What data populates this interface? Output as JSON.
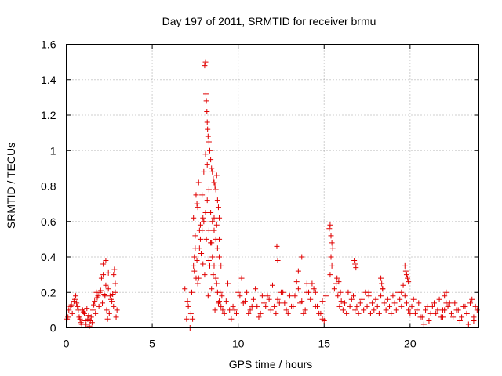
{
  "chart_data": {
    "type": "scatter",
    "title": "Day 197 of 2011, SRMTID for receiver brmu",
    "xlabel": "GPS time / hours",
    "ylabel": "SRMTID / TECUs",
    "xlim": [
      0,
      24
    ],
    "ylim": [
      0,
      1.6
    ],
    "xticks": [
      0,
      5,
      10,
      15,
      20
    ],
    "xtick_labels": [
      "0",
      "5",
      "10",
      "15",
      "20"
    ],
    "yticks": [
      0,
      0.2,
      0.4,
      0.6,
      0.8,
      1,
      1.2,
      1.4,
      1.6
    ],
    "ytick_labels": [
      "0",
      "0.2",
      "0.4",
      "0.6",
      "0.8",
      "1",
      "1.2",
      "1.4",
      "1.6"
    ],
    "grid": true,
    "marker": "plus",
    "color": "#e00000",
    "series": [
      {
        "name": "SRMTID",
        "x": [
          0.05,
          0.15,
          0.25,
          0.35,
          0.45,
          0.55,
          0.65,
          0.75,
          0.85,
          0.95,
          1.05,
          1.15,
          1.25,
          1.35,
          1.45,
          1.55,
          1.65,
          1.75,
          1.85,
          1.95,
          2.05,
          2.15,
          2.25,
          2.35,
          2.45,
          2.55,
          2.65,
          2.75,
          2.85,
          2.95,
          0.1,
          0.3,
          0.5,
          0.7,
          0.9,
          1.1,
          1.3,
          1.5,
          1.7,
          1.9,
          2.1,
          2.3,
          2.5,
          2.7,
          2.9,
          1.0,
          1.2,
          1.4,
          1.8,
          2.0,
          2.2,
          2.4,
          2.6,
          2.8,
          0.6,
          0.8,
          1.6,
          2.15,
          2.3,
          2.45,
          2.75,
          2.85,
          6.9,
          7.0,
          7.1,
          7.2,
          7.3,
          7.4,
          7.5,
          7.6,
          7.7,
          7.8,
          7.9,
          8.0,
          8.1,
          8.2,
          8.3,
          8.4,
          8.5,
          8.6,
          8.7,
          8.8,
          8.9,
          9.0,
          9.1,
          9.2,
          7.05,
          7.25,
          7.45,
          7.65,
          7.85,
          8.05,
          8.25,
          8.45,
          8.65,
          8.85,
          9.05,
          7.35,
          7.55,
          7.75,
          7.95,
          8.15,
          8.35,
          8.55,
          8.75,
          8.95,
          8.05,
          8.1,
          8.12,
          8.15,
          8.18,
          8.2,
          8.22,
          8.25,
          8.3,
          8.35,
          8.4,
          8.45,
          8.5,
          8.55,
          8.6,
          8.65,
          8.7,
          8.75,
          8.8,
          8.85,
          8.9,
          7.5,
          7.6,
          7.7,
          7.8,
          7.9,
          8.0,
          8.1,
          8.2,
          8.3,
          8.4,
          8.5,
          8.6,
          8.7,
          8.8,
          8.9,
          9.0,
          7.4,
          7.45,
          7.55,
          7.65,
          7.75,
          7.85,
          7.95,
          8.3,
          8.45,
          8.6,
          8.75,
          8.9,
          9.3,
          9.5,
          9.7,
          9.9,
          10.1,
          10.3,
          10.5,
          10.7,
          10.9,
          11.1,
          11.3,
          11.5,
          11.7,
          11.9,
          12.1,
          12.3,
          12.5,
          12.7,
          12.9,
          13.1,
          13.3,
          13.5,
          13.7,
          13.9,
          14.1,
          14.3,
          14.5,
          14.7,
          14.9,
          15.1,
          9.4,
          9.6,
          9.8,
          10.0,
          10.2,
          10.4,
          10.6,
          10.8,
          11.0,
          11.2,
          11.4,
          11.6,
          11.8,
          12.0,
          12.2,
          12.4,
          12.6,
          12.8,
          13.0,
          13.2,
          13.4,
          13.6,
          13.8,
          14.0,
          14.2,
          14.4,
          14.6,
          14.8,
          15.0,
          12.25,
          12.3,
          13.5,
          13.7,
          14.0,
          14.5,
          14.9,
          15.3,
          15.35,
          15.4,
          15.45,
          15.5,
          15.4,
          15.45,
          15.35,
          15.6,
          15.7,
          15.8,
          15.9,
          16.0,
          16.1,
          16.2,
          16.3,
          16.4,
          16.5,
          16.6,
          16.7,
          16.8,
          16.9,
          17.0,
          17.1,
          17.2,
          17.3,
          17.4,
          17.5,
          17.6,
          17.7,
          17.8,
          17.9,
          18.0,
          18.1,
          18.2,
          18.3,
          18.4,
          18.5,
          18.6,
          18.7,
          18.8,
          18.9,
          19.0,
          19.1,
          19.2,
          19.3,
          19.4,
          19.5,
          19.6,
          19.7,
          19.8,
          19.9,
          20.0,
          16.75,
          16.8,
          16.85,
          15.75,
          15.85,
          15.95,
          19.7,
          19.75,
          19.8,
          19.85,
          19.9,
          18.3,
          18.35,
          18.4,
          17.6,
          19.5,
          20.1,
          20.3,
          20.5,
          20.7,
          20.9,
          21.1,
          21.3,
          21.5,
          21.7,
          21.9,
          22.1,
          22.3,
          22.5,
          22.7,
          22.9,
          23.1,
          23.3,
          23.5,
          23.7,
          23.9,
          20.2,
          20.4,
          20.6,
          20.8,
          21.0,
          21.2,
          21.4,
          21.6,
          21.8,
          22.0,
          22.2,
          22.4,
          22.6,
          22.8,
          23.0,
          23.2,
          23.4,
          23.6,
          23.8,
          22.0,
          22.1,
          21.9,
          23.3,
          23.7
        ],
        "y": [
          0.05,
          0.1,
          0.12,
          0.08,
          0.15,
          0.18,
          0.12,
          0.06,
          0.03,
          0.1,
          0.08,
          0.02,
          0.05,
          0.01,
          0.06,
          0.1,
          0.15,
          0.2,
          0.18,
          0.2,
          0.28,
          0.3,
          0.18,
          0.1,
          0.22,
          0.18,
          0.15,
          0.12,
          0.25,
          0.1,
          0.06,
          0.13,
          0.16,
          0.1,
          0.02,
          0.04,
          0.07,
          0.03,
          0.08,
          0.12,
          0.14,
          0.24,
          0.08,
          0.19,
          0.06,
          0.09,
          0.11,
          0.04,
          0.17,
          0.21,
          0.19,
          0.05,
          0.16,
          0.33,
          0.14,
          0.05,
          0.13,
          0.36,
          0.38,
          0.31,
          0.3,
          0.2,
          0.22,
          0.05,
          0.12,
          0.0,
          0.2,
          0.35,
          0.45,
          0.38,
          0.28,
          0.5,
          0.55,
          0.6,
          0.65,
          0.72,
          0.55,
          0.48,
          0.4,
          0.35,
          0.28,
          0.2,
          0.15,
          0.12,
          0.1,
          0.08,
          0.15,
          0.08,
          0.32,
          0.25,
          0.42,
          0.3,
          0.18,
          0.22,
          0.1,
          0.14,
          0.18,
          0.05,
          0.28,
          0.45,
          0.62,
          0.5,
          0.35,
          0.3,
          0.25,
          0.2,
          1.48,
          1.5,
          1.32,
          1.28,
          1.22,
          1.16,
          1.12,
          1.08,
          1.05,
          1.0,
          0.95,
          0.9,
          0.88,
          0.84,
          0.82,
          0.8,
          0.78,
          0.86,
          0.72,
          0.68,
          0.62,
          0.52,
          0.7,
          0.82,
          0.58,
          0.75,
          0.88,
          0.98,
          0.92,
          0.78,
          0.65,
          0.6,
          0.55,
          0.5,
          0.45,
          0.4,
          0.35,
          0.62,
          0.4,
          0.75,
          0.68,
          0.55,
          0.42,
          0.36,
          0.38,
          0.48,
          0.62,
          0.58,
          0.5,
          0.15,
          0.1,
          0.12,
          0.08,
          0.18,
          0.14,
          0.2,
          0.1,
          0.16,
          0.12,
          0.08,
          0.14,
          0.18,
          0.1,
          0.12,
          0.16,
          0.2,
          0.14,
          0.08,
          0.12,
          0.18,
          0.22,
          0.15,
          0.1,
          0.2,
          0.25,
          0.12,
          0.08,
          0.15,
          0.18,
          0.25,
          0.05,
          0.1,
          0.2,
          0.28,
          0.15,
          0.08,
          0.12,
          0.22,
          0.06,
          0.18,
          0.12,
          0.16,
          0.24,
          0.08,
          0.14,
          0.2,
          0.1,
          0.18,
          0.12,
          0.26,
          0.14,
          0.08,
          0.2,
          0.16,
          0.22,
          0.12,
          0.08,
          0.04,
          0.46,
          0.38,
          0.32,
          0.4,
          0.25,
          0.2,
          0.05,
          0.56,
          0.58,
          0.52,
          0.48,
          0.45,
          0.4,
          0.35,
          0.3,
          0.22,
          0.25,
          0.18,
          0.12,
          0.15,
          0.1,
          0.14,
          0.08,
          0.2,
          0.12,
          0.16,
          0.18,
          0.1,
          0.12,
          0.08,
          0.14,
          0.16,
          0.1,
          0.2,
          0.12,
          0.18,
          0.08,
          0.14,
          0.1,
          0.16,
          0.12,
          0.08,
          0.18,
          0.22,
          0.14,
          0.1,
          0.16,
          0.12,
          0.08,
          0.18,
          0.14,
          0.1,
          0.2,
          0.16,
          0.12,
          0.24,
          0.18,
          0.14,
          0.1,
          0.08,
          0.38,
          0.36,
          0.34,
          0.28,
          0.26,
          0.2,
          0.35,
          0.32,
          0.3,
          0.28,
          0.26,
          0.28,
          0.25,
          0.22,
          0.2,
          0.2,
          0.12,
          0.08,
          0.14,
          0.06,
          0.1,
          0.04,
          0.12,
          0.08,
          0.16,
          0.1,
          0.2,
          0.14,
          0.06,
          0.1,
          0.04,
          0.12,
          0.08,
          0.14,
          0.06,
          0.1,
          0.16,
          0.1,
          0.06,
          0.02,
          0.12,
          0.08,
          0.14,
          0.1,
          0.06,
          0.18,
          0.12,
          0.08,
          0.14,
          0.1,
          0.06,
          0.12,
          0.02,
          0.16,
          0.12,
          0.1,
          0.14,
          0.06,
          0.08,
          0.04
        ]
      }
    ]
  }
}
